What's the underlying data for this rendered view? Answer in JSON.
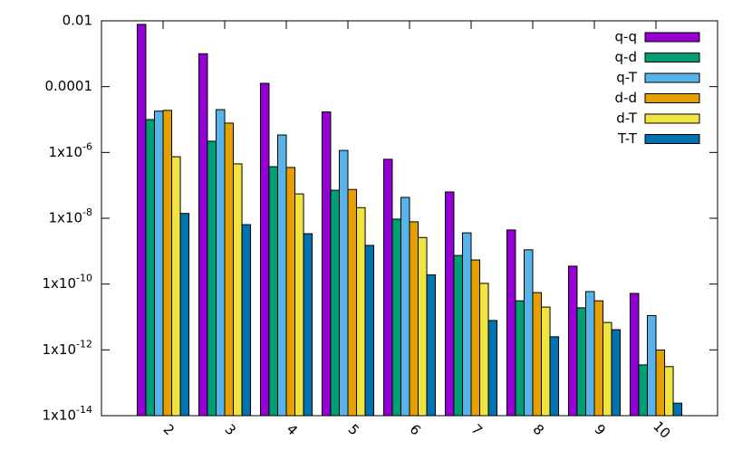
{
  "chart_data": {
    "type": "bar",
    "ylog": true,
    "categories": [
      "2",
      "3",
      "4",
      "5",
      "6",
      "7",
      "8",
      "9",
      "10"
    ],
    "series": [
      {
        "name": "q-q",
        "color": "#9400d3",
        "values": [
          0.0078,
          0.001,
          0.000126,
          1.7e-05,
          6.2e-07,
          6.3e-08,
          4.4e-09,
          3.5e-10,
          5.2e-11
        ]
      },
      {
        "name": "q-d",
        "color": "#009e73",
        "values": [
          1e-05,
          2.2e-06,
          3.7e-07,
          7.1e-08,
          9.4e-09,
          7.4e-10,
          3.1e-11,
          1.9e-11,
          3.5e-13
        ]
      },
      {
        "name": "q-T",
        "color": "#56b4e9",
        "values": [
          1.8e-05,
          2e-05,
          3.4e-06,
          1.15e-06,
          4.3e-08,
          3.6e-09,
          1.1e-09,
          5.9e-11,
          1.1e-11
        ]
      },
      {
        "name": "d-d",
        "color": "#e69f00",
        "values": [
          1.9e-05,
          7.8e-06,
          3.5e-07,
          7.5e-08,
          7.8e-09,
          5.4e-10,
          5.5e-11,
          3.1e-11,
          9.9e-13
        ]
      },
      {
        "name": "d-T",
        "color": "#f0e442",
        "values": [
          7.4e-07,
          4.5e-07,
          5.5e-08,
          2.1e-08,
          2.6e-09,
          1.05e-10,
          2e-11,
          6.8e-12,
          3.1e-13
        ]
      },
      {
        "name": "T-T",
        "color": "#0072b2",
        "values": [
          1.4e-08,
          6.4e-09,
          3.4e-09,
          1.5e-09,
          1.9e-10,
          7.8e-12,
          2.5e-12,
          4.1e-12,
          2.4e-14
        ]
      }
    ],
    "ylim": [
      1e-14,
      0.01
    ],
    "yticks": [
      {
        "value": 1e-14,
        "label": "1x10-14"
      },
      {
        "value": 1e-12,
        "label": "1x10-12"
      },
      {
        "value": 1e-10,
        "label": "1x10-10"
      },
      {
        "value": 1e-08,
        "label": "1x10-8"
      },
      {
        "value": 1e-06,
        "label": "1x10-6"
      },
      0.0001,
      0.01
    ],
    "legend": "top-right"
  }
}
